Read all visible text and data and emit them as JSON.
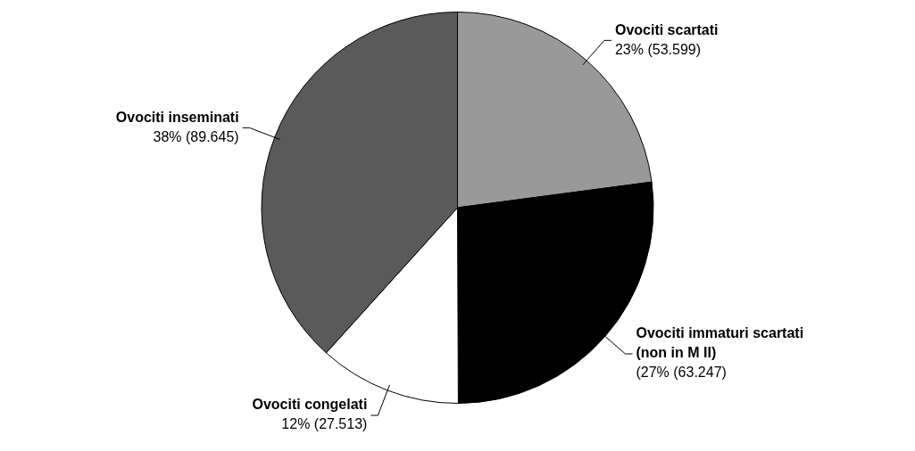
{
  "chart_data": {
    "type": "pie",
    "categories": [
      "Ovociti scartati",
      "Ovociti immaturi scartati\n(non in M II)",
      "Ovociti congelati",
      "Ovociti inseminati"
    ],
    "values": [
      53599,
      63247,
      27513,
      89645
    ],
    "colors": [
      "#999999",
      "#000000",
      "#ffffff",
      "#5a5a5a"
    ],
    "value_labels": [
      "23% (53.599)",
      "(27% (63.247)",
      "12% (27.513)",
      "38% (89.645)"
    ],
    "legend": false
  }
}
